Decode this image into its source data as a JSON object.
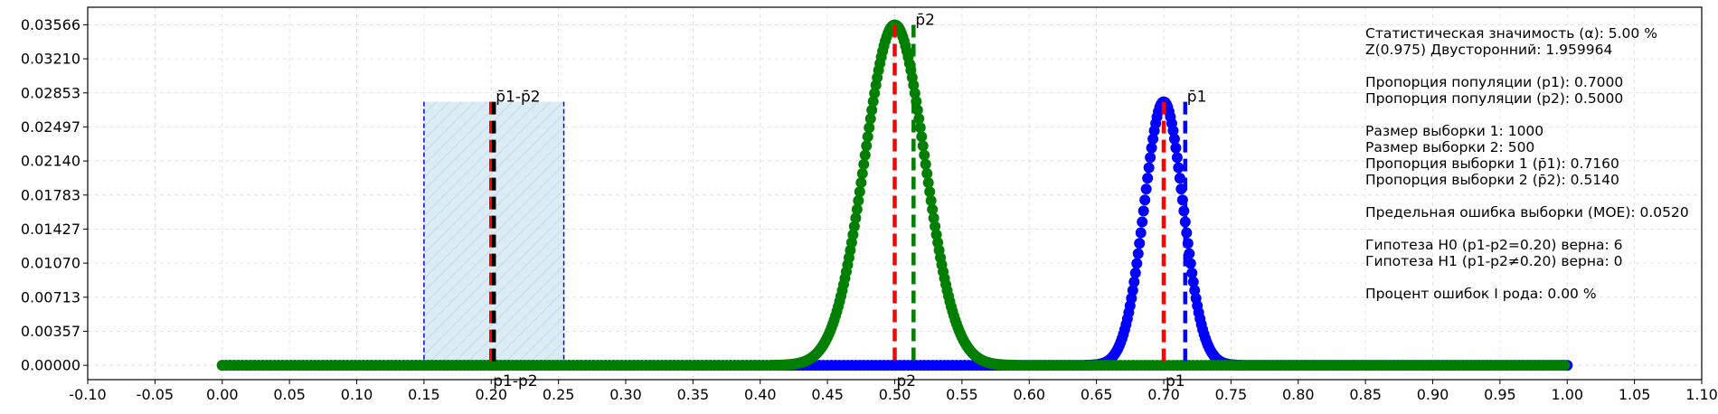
{
  "chart_data": {
    "type": "scatter",
    "xlim": [
      -0.1,
      1.1
    ],
    "ylim": [
      -0.0015,
      0.0375
    ],
    "grid": true,
    "xticks": [
      "-0.10",
      "-0.05",
      "0.00",
      "0.05",
      "0.10",
      "0.15",
      "0.20",
      "0.25",
      "0.30",
      "0.35",
      "0.40",
      "0.45",
      "0.50",
      "0.55",
      "0.60",
      "0.65",
      "0.70",
      "0.75",
      "0.80",
      "0.85",
      "0.90",
      "0.95",
      "1.00",
      "1.05",
      "1.10"
    ],
    "yticks": [
      "0.00000",
      "0.00357",
      "0.00713",
      "0.01070",
      "0.01427",
      "0.01783",
      "0.02140",
      "0.02497",
      "0.02853",
      "0.03210",
      "0.03566"
    ],
    "series": [
      {
        "color": "#0000ff",
        "mean": 0.7,
        "std": 0.0145,
        "peak": 0.0276,
        "x_range": [
          0.0,
          1.0
        ]
      },
      {
        "color": "#007f00",
        "mean": 0.5,
        "std": 0.0224,
        "peak": 0.03566,
        "x_range": [
          0.0,
          1.0
        ]
      }
    ],
    "interval": {
      "from": 0.15,
      "to": 0.254,
      "top": 0.0276,
      "fill": "#d6e9f3",
      "edge_color": "#0000ff"
    },
    "vlines": [
      {
        "x": 0.7,
        "top": 0.0276,
        "color": "#ff0000",
        "style": "dashed"
      },
      {
        "x": 0.716,
        "top": 0.0276,
        "color": "#0000ff",
        "style": "dashed"
      },
      {
        "x": 0.5,
        "top": 0.03566,
        "color": "#ff0000",
        "style": "dashed"
      },
      {
        "x": 0.514,
        "top": 0.03566,
        "color": "#007f00",
        "style": "dashed"
      },
      {
        "x": 0.2,
        "top": 0.0276,
        "color": "#ff0000",
        "style": "dashed"
      },
      {
        "x": 0.202,
        "top": 0.0276,
        "color": "#000000",
        "style": "dashed"
      }
    ],
    "annotations": [
      {
        "text": "p1",
        "x": 0.7,
        "y": -0.0012
      },
      {
        "text": "p̄1",
        "x": 0.716,
        "y": 0.0276
      },
      {
        "text": "p2",
        "x": 0.5,
        "y": -0.0012
      },
      {
        "text": "p̄2",
        "x": 0.514,
        "y": 0.03566
      },
      {
        "text": "p1-p2",
        "x": 0.2,
        "y": -0.0012
      },
      {
        "text": "p̄1-p̄2",
        "x": 0.202,
        "y": 0.0276
      }
    ],
    "info_lines": [
      "Статистическая значимость (α): 5.00 %",
      "Z(0.975) Двусторонний: 1.959964",
      "",
      "Пропорция популяции (p1): 0.7000",
      "Пропорция популяции (p2): 0.5000",
      "",
      "Размер выборки 1: 1000",
      "Размер выборки 2: 500",
      "Пропорция выборки 1 (p̄1): 0.7160",
      "Пропорция выборки 2 (p̄2): 0.5140",
      "",
      "Предельная ошибка выборки (MOE): 0.0520",
      "",
      "Гипотеза H0 (p1-p2=0.20) верна: 6",
      "Гипотеза H1 (p1-p2≠0.20) верна: 0",
      "",
      "Процент ошибок I рода: 0.00 %"
    ]
  }
}
